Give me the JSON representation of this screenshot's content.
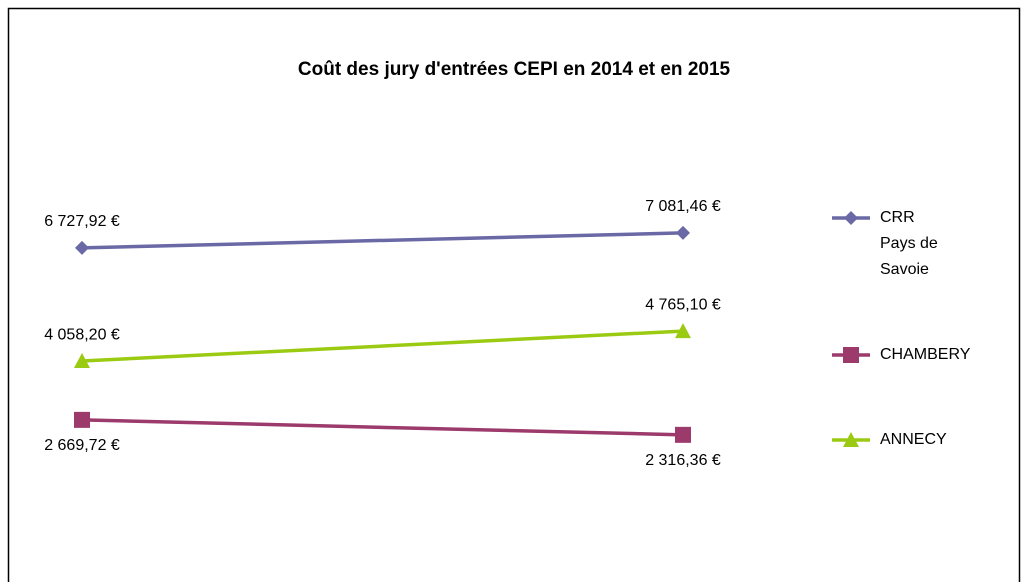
{
  "chart_data": {
    "type": "line",
    "title": "Coût des jury d'entrées CEPI en 2014 et en 2015",
    "categories": [
      null,
      null
    ],
    "ylim": [
      0,
      8000
    ],
    "series": [
      {
        "name": "CRR Pays de Savoie",
        "color": "#6a69a6",
        "marker": "diamond",
        "values": [
          6727.92,
          7081.46
        ],
        "value_labels": [
          "6 727,92 €",
          "7 081,46 €"
        ]
      },
      {
        "name": "CHAMBERY",
        "color": "#9b3a6b",
        "marker": "square",
        "values": [
          2669.72,
          2316.36
        ],
        "value_labels": [
          "2 669,72 €",
          "2 316,36 €"
        ]
      },
      {
        "name": "ANNECY",
        "color": "#9acb12",
        "marker": "triangle",
        "values": [
          4058.2,
          4765.1
        ],
        "value_labels": [
          "4 058,20 €",
          "4 765,10 €"
        ]
      }
    ]
  }
}
